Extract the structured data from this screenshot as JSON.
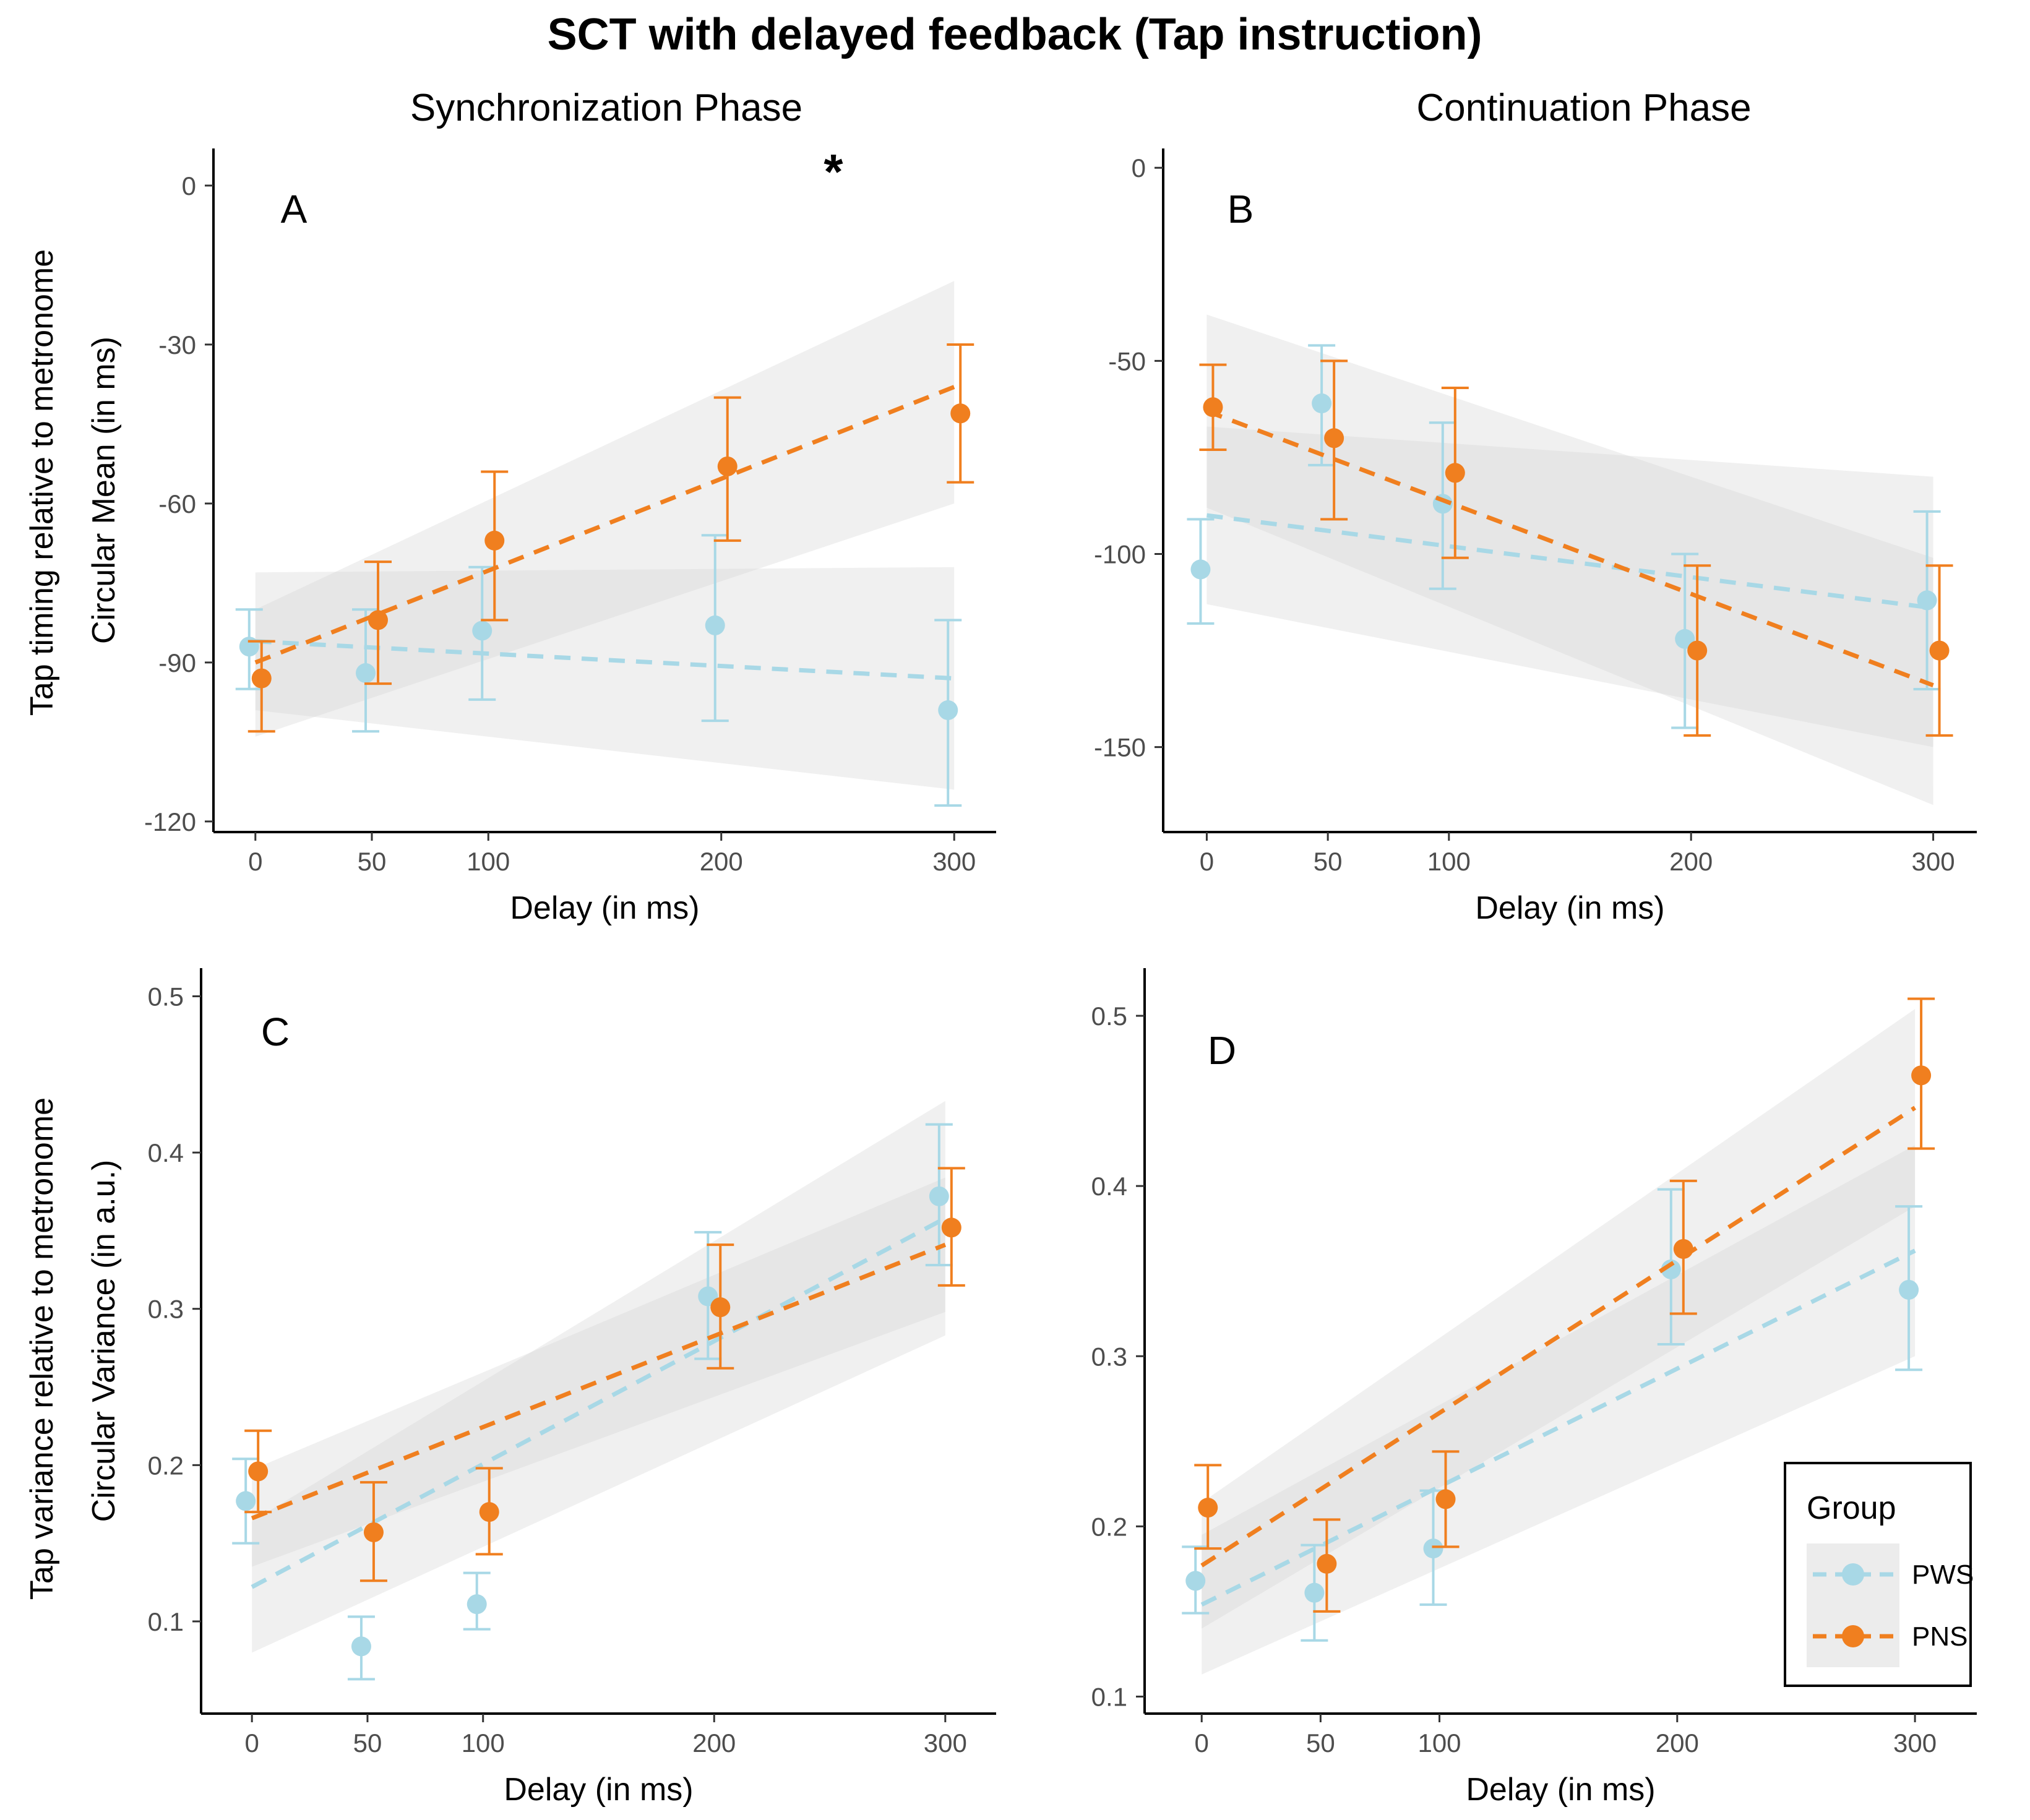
{
  "title": "SCT with delayed feedback  (Tap instruction)",
  "columns": [
    "Synchronization Phase",
    "Continuation Phase"
  ],
  "row_labels": [
    "Tap timing relative to metronome",
    "Tap variance relative to metronome"
  ],
  "colors": {
    "PWS": "#a8d8e6",
    "PNS": "#f07f1f",
    "band": "#cfcfcf"
  },
  "legend": {
    "title": "Group",
    "entries": [
      "PWS",
      "PNS"
    ],
    "placement": "bottom-right of panel D"
  },
  "chart_data": [
    {
      "panel": "A",
      "type": "scatter",
      "note": "*",
      "xlabel": "Delay (in ms)",
      "ylabel": "Circular Mean (in ms)",
      "x": [
        0,
        50,
        100,
        200,
        300
      ],
      "xticks": [
        "0",
        "50",
        "100",
        "200",
        "300"
      ],
      "xlim": [
        -18,
        318
      ],
      "ylim": [
        -122,
        7
      ],
      "yticks": [
        0,
        -30,
        -60,
        -90,
        -120
      ],
      "yticklabels": [
        "0",
        "-30",
        "-60",
        "-90",
        "-120"
      ],
      "series": [
        {
          "name": "PWS",
          "values": [
            -87,
            -92,
            -84,
            -83,
            -99
          ],
          "lower": [
            -95,
            -103,
            -97,
            -101,
            -117
          ],
          "upper": [
            -80,
            -80,
            -72,
            -66,
            -82
          ],
          "fit": [
            -86,
            -93
          ],
          "band_low": [
            -99,
            -114
          ],
          "band_high": [
            -73,
            -72
          ]
        },
        {
          "name": "PNS",
          "values": [
            -93,
            -82,
            -67,
            -53,
            -43
          ],
          "lower": [
            -103,
            -94,
            -82,
            -67,
            -56
          ],
          "upper": [
            -86,
            -71,
            -54,
            -40,
            -30
          ],
          "fit": [
            -90,
            -38
          ],
          "band_low": [
            -104,
            -60
          ],
          "band_high": [
            -80,
            -18
          ]
        }
      ]
    },
    {
      "panel": "B",
      "type": "scatter",
      "xlabel": "Delay (in ms)",
      "ylabel": "",
      "x": [
        0,
        50,
        100,
        200,
        300
      ],
      "xticks": [
        "0",
        "50",
        "100",
        "200",
        "300"
      ],
      "xlim": [
        -18,
        318
      ],
      "ylim": [
        -172,
        5
      ],
      "yticks": [
        0,
        -50,
        -100,
        -150
      ],
      "yticklabels": [
        "0",
        "-50",
        "-100",
        "-150"
      ],
      "series": [
        {
          "name": "PWS",
          "values": [
            -104,
            -61,
            -87,
            -122,
            -112
          ],
          "lower": [
            -118,
            -77,
            -109,
            -145,
            -135
          ],
          "upper": [
            -91,
            -46,
            -66,
            -100,
            -89
          ],
          "fit": [
            -90,
            -114
          ],
          "band_low": [
            -113,
            -150
          ],
          "band_high": [
            -67,
            -80
          ]
        },
        {
          "name": "PNS",
          "values": [
            -62,
            -70,
            -79,
            -125,
            -125
          ],
          "lower": [
            -73,
            -91,
            -101,
            -147,
            -147
          ],
          "upper": [
            -51,
            -50,
            -57,
            -103,
            -103
          ],
          "fit": [
            -63,
            -134
          ],
          "band_low": [
            -88,
            -165
          ],
          "band_high": [
            -38,
            -101
          ]
        }
      ]
    },
    {
      "panel": "C",
      "type": "scatter",
      "xlabel": "Delay (in ms)",
      "ylabel": "Circular Variance (in a.u.)",
      "x": [
        0,
        50,
        100,
        200,
        300
      ],
      "xticks": [
        "0",
        "50",
        "100",
        "200",
        "300"
      ],
      "xlim": [
        -22,
        322
      ],
      "ylim": [
        0.041,
        0.518
      ],
      "yticks": [
        0.1,
        0.2,
        0.3,
        0.4,
        0.5
      ],
      "yticklabels": [
        "0.1",
        "0.2",
        "0.3",
        "0.4",
        "0.5"
      ],
      "series": [
        {
          "name": "PWS",
          "values": [
            0.177,
            0.084,
            0.111,
            0.308,
            0.372
          ],
          "lower": [
            0.15,
            0.063,
            0.095,
            0.268,
            0.328
          ],
          "upper": [
            0.204,
            0.103,
            0.131,
            0.349,
            0.418
          ],
          "fit": [
            0.122,
            0.358
          ],
          "band_low": [
            0.08,
            0.283
          ],
          "band_high": [
            0.164,
            0.433
          ]
        },
        {
          "name": "PNS",
          "values": [
            0.196,
            0.157,
            0.17,
            0.301,
            0.352
          ],
          "lower": [
            0.17,
            0.126,
            0.143,
            0.262,
            0.315
          ],
          "upper": [
            0.222,
            0.189,
            0.198,
            0.341,
            0.39
          ],
          "fit": [
            0.166,
            0.341
          ],
          "band_low": [
            0.135,
            0.298
          ],
          "band_high": [
            0.197,
            0.384
          ]
        }
      ]
    },
    {
      "panel": "D",
      "type": "scatter",
      "xlabel": "Delay (in ms)",
      "ylabel": "",
      "x": [
        0,
        50,
        100,
        200,
        300
      ],
      "xticks": [
        "0",
        "50",
        "100",
        "200",
        "300"
      ],
      "xlim": [
        -24,
        326
      ],
      "ylim": [
        0.09,
        0.528
      ],
      "yticks": [
        0.1,
        0.2,
        0.3,
        0.4,
        0.5
      ],
      "yticklabels": [
        "0.1",
        "0.2",
        "0.3",
        "0.4",
        "0.5"
      ],
      "series": [
        {
          "name": "PWS",
          "values": [
            0.168,
            0.161,
            0.187,
            0.351,
            0.339
          ],
          "lower": [
            0.149,
            0.133,
            0.154,
            0.307,
            0.292
          ],
          "upper": [
            0.188,
            0.189,
            0.221,
            0.398,
            0.388
          ],
          "fit": [
            0.154,
            0.362
          ],
          "band_low": [
            0.113,
            0.3
          ],
          "band_high": [
            0.195,
            0.424
          ]
        },
        {
          "name": "PNS",
          "values": [
            0.211,
            0.178,
            0.216,
            0.363,
            0.465
          ],
          "lower": [
            0.187,
            0.15,
            0.188,
            0.325,
            0.422
          ],
          "upper": [
            0.236,
            0.204,
            0.244,
            0.403,
            0.51
          ],
          "fit": [
            0.177,
            0.446
          ],
          "band_low": [
            0.14,
            0.388
          ],
          "band_high": [
            0.214,
            0.504
          ]
        }
      ]
    }
  ]
}
